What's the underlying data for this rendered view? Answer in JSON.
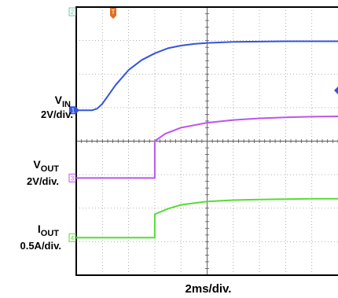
{
  "chart_data": {
    "type": "line",
    "xlabel": "2ms/div.",
    "x_divisions": 10,
    "y_divisions": 8,
    "grid": true,
    "trigger_marker": "T",
    "channels": [
      {
        "id": 1,
        "marker": "1",
        "name_main": "V",
        "name_sub": "IN",
        "scale": "2V/div.",
        "color": "#3355dd",
        "ref_div": 4.92,
        "x_div": [
          0,
          0.6,
          0.8,
          1.0,
          1.2,
          1.5,
          2.0,
          2.5,
          3.0,
          3.5,
          4.0,
          4.5,
          5.0,
          6.0,
          7.0,
          8.0,
          9.0,
          10.0
        ],
        "y_div": [
          0.0,
          0.0,
          0.05,
          0.2,
          0.42,
          0.75,
          1.2,
          1.5,
          1.7,
          1.85,
          1.93,
          1.98,
          2.01,
          2.04,
          2.05,
          2.06,
          2.06,
          2.06
        ]
      },
      {
        "id": 3,
        "marker": "3",
        "name_main": "V",
        "name_sub": "OUT",
        "scale": "2V/div.",
        "color": "#bb55ee",
        "ref_div": 2.9,
        "x_div": [
          0,
          3.0,
          3.0,
          3.4,
          4.0,
          5.0,
          6.0,
          7.0,
          8.0,
          9.0,
          10.0
        ],
        "y_div": [
          0.0,
          0.0,
          1.1,
          1.32,
          1.5,
          1.65,
          1.73,
          1.78,
          1.81,
          1.83,
          1.84
        ]
      },
      {
        "id": 4,
        "marker": "4",
        "name_main": "I",
        "name_sub": "OUT",
        "scale": "0.5A/div.",
        "color": "#55dd33",
        "ref_div": 1.12,
        "x_div": [
          0,
          3.0,
          3.0,
          3.5,
          4.0,
          5.0,
          6.0,
          7.0,
          8.0,
          9.0,
          10.0
        ],
        "y_div": [
          0.0,
          0.0,
          0.7,
          0.86,
          0.98,
          1.08,
          1.12,
          1.14,
          1.15,
          1.16,
          1.16
        ]
      }
    ]
  }
}
